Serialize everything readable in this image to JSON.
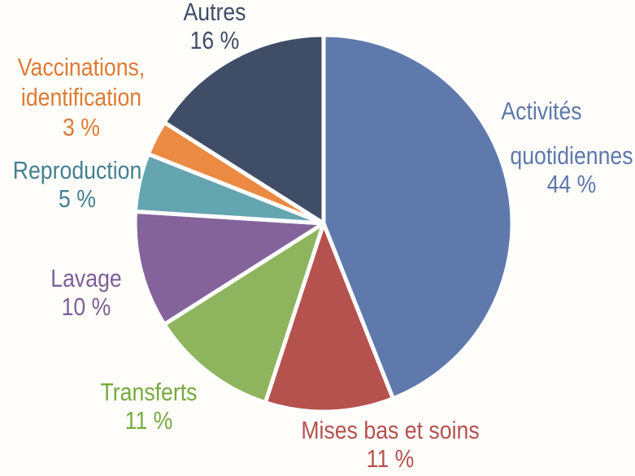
{
  "chart_data": {
    "type": "pie",
    "title": "",
    "legend": "none",
    "direction": "clockwise",
    "start_angle_deg": 0,
    "stroke_color": "#FFFFFF",
    "stroke_width": 5,
    "categories": [
      "Activités quotidiennes",
      "Mises bas et soins",
      "Transferts",
      "Lavage",
      "Reproduction",
      "Vaccinations, identification",
      "Autres"
    ],
    "values": [
      44,
      11,
      11,
      10,
      5,
      3,
      16
    ],
    "slices": [
      {
        "id": "activites-quotidiennes",
        "label": "Activités quotidiennes",
        "value": 44,
        "pct_text": "44 %",
        "color": "#5F79AD",
        "text_color": "#5E78AC",
        "label_lines": [
          "Activités",
          "quotidiennes",
          "44 %"
        ]
      },
      {
        "id": "mises-bas-et-soins",
        "label": "Mises bas et soins",
        "value": 11,
        "pct_text": "11 %",
        "color": "#B5524E",
        "text_color": "#B5524E",
        "label_lines": [
          "Mises bas et soins",
          "11 %"
        ]
      },
      {
        "id": "transferts",
        "label": "Transferts",
        "value": 11,
        "pct_text": "11 %",
        "color": "#8EB55E",
        "text_color": "#76A93F",
        "label_lines": [
          "Transferts",
          "11 %"
        ]
      },
      {
        "id": "lavage",
        "label": "Lavage",
        "value": 10,
        "pct_text": "10 %",
        "color": "#84639B",
        "text_color": "#7F5F97",
        "label_lines": [
          "Lavage",
          "10 %"
        ]
      },
      {
        "id": "reproduction",
        "label": "Reproduction",
        "value": 5,
        "pct_text": "5 %",
        "color": "#64A5B0",
        "text_color": "#44808F",
        "label_lines": [
          "Reproduction",
          "5 %"
        ]
      },
      {
        "id": "vaccinations-identification",
        "label": "Vaccinations, identification",
        "value": 3,
        "pct_text": "3 %",
        "color": "#EA8A43",
        "text_color": "#DE7A33",
        "label_lines": [
          "Vaccinations,",
          "identification",
          "3 %"
        ]
      },
      {
        "id": "autres",
        "label": "Autres",
        "value": 16,
        "pct_text": "16 %",
        "color": "#404D67",
        "text_color": "#404D67",
        "label_lines": [
          "Autres",
          "16 %"
        ]
      }
    ]
  },
  "canvas": {
    "background": "#FFFEFB"
  }
}
